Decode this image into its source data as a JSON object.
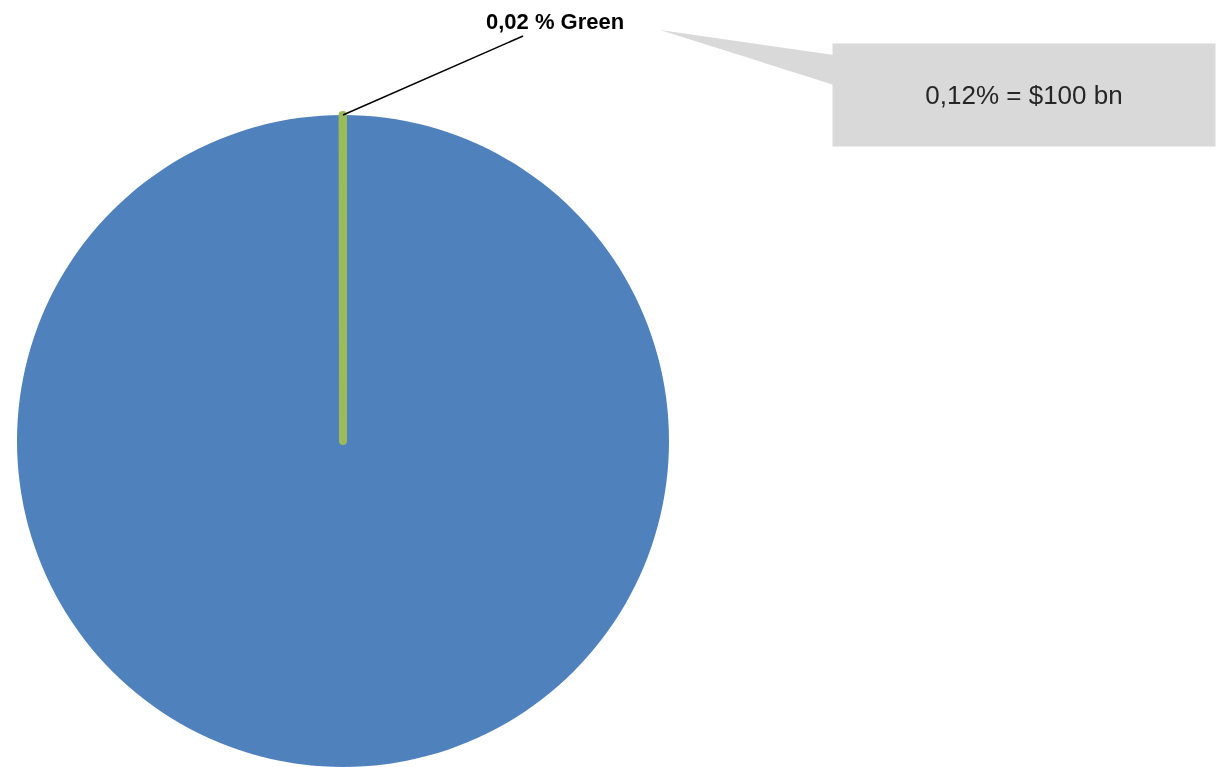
{
  "chart_data": {
    "type": "pie",
    "categories": [
      null,
      "Green"
    ],
    "values": [
      99.98,
      0.02
    ],
    "colors": [
      "#4f81bd",
      "#9bbb59"
    ],
    "value_labels": [
      null,
      "0,02 %"
    ],
    "annotations": [
      "0,12% = $100 bn"
    ]
  }
}
